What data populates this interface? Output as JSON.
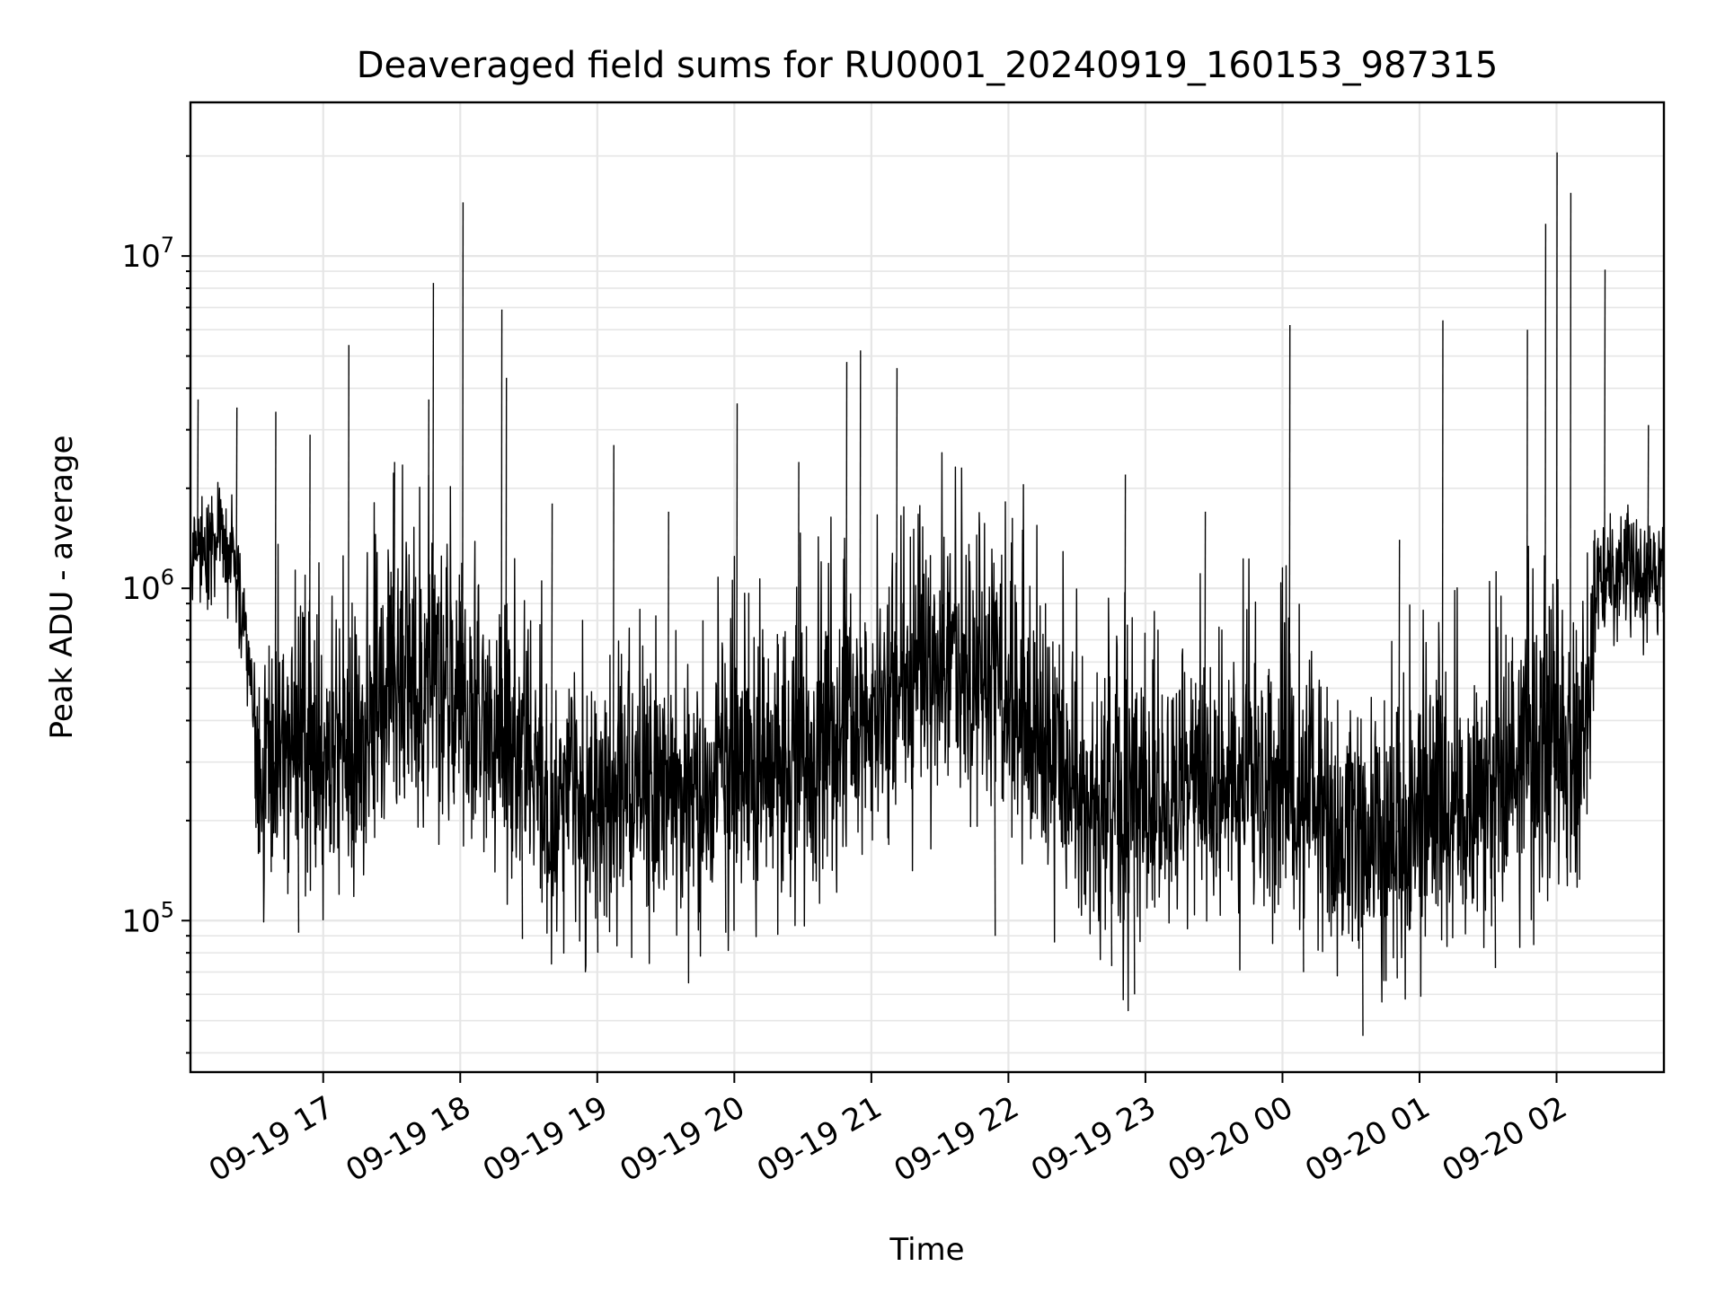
{
  "chart_data": {
    "type": "line",
    "title": "Deaveraged field sums for RU0001_20240919_160153_987315",
    "xlabel": "Time",
    "ylabel": "Peak ADU - average",
    "yscale": "log",
    "xlim": [
      "2024-09-19 16:01:53",
      "2024-09-20 02:47:00"
    ],
    "ylim": [
      35000,
      29000000
    ],
    "x_ticks": [
      {
        "value": "2024-09-19 17:00",
        "label": "09-19 17"
      },
      {
        "value": "2024-09-19 18:00",
        "label": "09-19 18"
      },
      {
        "value": "2024-09-19 19:00",
        "label": "09-19 19"
      },
      {
        "value": "2024-09-19 20:00",
        "label": "09-19 20"
      },
      {
        "value": "2024-09-19 21:00",
        "label": "09-19 21"
      },
      {
        "value": "2024-09-19 22:00",
        "label": "09-19 22"
      },
      {
        "value": "2024-09-19 23:00",
        "label": "09-19 23"
      },
      {
        "value": "2024-09-20 00:00",
        "label": "09-20 00"
      },
      {
        "value": "2024-09-20 01:00",
        "label": "09-20 01"
      },
      {
        "value": "2024-09-20 02:00",
        "label": "09-20 02"
      }
    ],
    "y_ticks": [
      {
        "value": 100000,
        "mantissa": "10",
        "exponent": "5"
      },
      {
        "value": 1000000,
        "mantissa": "10",
        "exponent": "6"
      },
      {
        "value": 10000000,
        "mantissa": "10",
        "exponent": "7"
      }
    ],
    "grid": true,
    "series_color": "#000000",
    "baseline": [
      [
        "2024-09-19 16:01",
        1150000
      ],
      [
        "2024-09-19 16:08",
        1500000
      ],
      [
        "2024-09-19 16:15",
        1350000
      ],
      [
        "2024-09-19 16:22",
        1100000
      ],
      [
        "2024-09-19 16:28",
        550000
      ],
      [
        "2024-09-19 16:32",
        290000
      ],
      [
        "2024-09-19 16:45",
        300000
      ],
      [
        "2024-09-19 17:00",
        290000
      ],
      [
        "2024-09-19 17:15",
        380000
      ],
      [
        "2024-09-19 17:30",
        500000
      ],
      [
        "2024-09-19 17:45",
        500000
      ],
      [
        "2024-09-19 18:00",
        420000
      ],
      [
        "2024-09-19 18:20",
        330000
      ],
      [
        "2024-09-19 18:35",
        240000
      ],
      [
        "2024-09-19 19:00",
        210000
      ],
      [
        "2024-09-19 19:30",
        230000
      ],
      [
        "2024-09-19 20:00",
        260000
      ],
      [
        "2024-09-19 20:30",
        300000
      ],
      [
        "2024-09-19 21:00",
        400000
      ],
      [
        "2024-09-19 21:30",
        550000
      ],
      [
        "2024-09-19 22:00",
        500000
      ],
      [
        "2024-09-19 22:20",
        300000
      ],
      [
        "2024-09-19 22:40",
        200000
      ],
      [
        "2024-09-19 23:00",
        210000
      ],
      [
        "2024-09-19 23:30",
        250000
      ],
      [
        "2024-09-20 00:00",
        250000
      ],
      [
        "2024-09-20 00:30",
        180000
      ],
      [
        "2024-09-20 01:00",
        190000
      ],
      [
        "2024-09-20 01:30",
        230000
      ],
      [
        "2024-09-20 01:45",
        300000
      ],
      [
        "2024-09-20 02:12",
        350000
      ],
      [
        "2024-09-20 02:17",
        1050000
      ],
      [
        "2024-09-20 02:30",
        1100000
      ],
      [
        "2024-09-20 02:47",
        1100000
      ]
    ],
    "spikes": [
      [
        "2024-09-19 16:05",
        3700000
      ],
      [
        "2024-09-19 16:22",
        3500000
      ],
      [
        "2024-09-19 16:39",
        3400000
      ],
      [
        "2024-09-19 16:54",
        2900000
      ],
      [
        "2024-09-19 17:11",
        5400000
      ],
      [
        "2024-09-19 17:31",
        2400000
      ],
      [
        "2024-09-19 17:46",
        3700000
      ],
      [
        "2024-09-19 17:48",
        8300000
      ],
      [
        "2024-09-19 18:01",
        14500000
      ],
      [
        "2024-09-19 18:18",
        6900000
      ],
      [
        "2024-09-19 18:20",
        4300000
      ],
      [
        "2024-09-19 18:40",
        1800000
      ],
      [
        "2024-09-19 19:07",
        2700000
      ],
      [
        "2024-09-19 19:31",
        1700000
      ],
      [
        "2024-09-19 20:01",
        3600000
      ],
      [
        "2024-09-19 20:28",
        2400000
      ],
      [
        "2024-09-19 20:49",
        4800000
      ],
      [
        "2024-09-19 20:55",
        5200000
      ],
      [
        "2024-09-19 21:11",
        4600000
      ],
      [
        "2024-09-19 22:06",
        1500000
      ],
      [
        "2024-09-19 22:51",
        2200000
      ],
      [
        "2024-09-19 23:26",
        1700000
      ],
      [
        "2024-09-20 00:03",
        6200000
      ],
      [
        "2024-09-20 00:51",
        1400000
      ],
      [
        "2024-09-20 01:10",
        6400000
      ],
      [
        "2024-09-20 01:47",
        6000000
      ],
      [
        "2024-09-20 01:55",
        12500000
      ],
      [
        "2024-09-20 02:00",
        20500000
      ],
      [
        "2024-09-20 02:06",
        15500000
      ],
      [
        "2024-09-20 02:21",
        9100000
      ],
      [
        "2024-09-20 02:40",
        3100000
      ]
    ],
    "dips": [
      [
        "2024-09-19 16:37",
        140000
      ],
      [
        "2024-09-19 16:49",
        92000
      ],
      [
        "2024-09-19 18:27",
        88000
      ],
      [
        "2024-09-19 19:00",
        80000
      ],
      [
        "2024-09-19 19:56",
        92000
      ],
      [
        "2024-09-19 21:54",
        90000
      ],
      [
        "2024-09-19 22:45",
        73000
      ],
      [
        "2024-09-19 22:55",
        60000
      ],
      [
        "2024-09-20 00:09",
        70000
      ],
      [
        "2024-09-20 00:35",
        45000
      ],
      [
        "2024-09-20 00:50",
        67000
      ],
      [
        "2024-09-20 01:33",
        72000
      ]
    ]
  }
}
